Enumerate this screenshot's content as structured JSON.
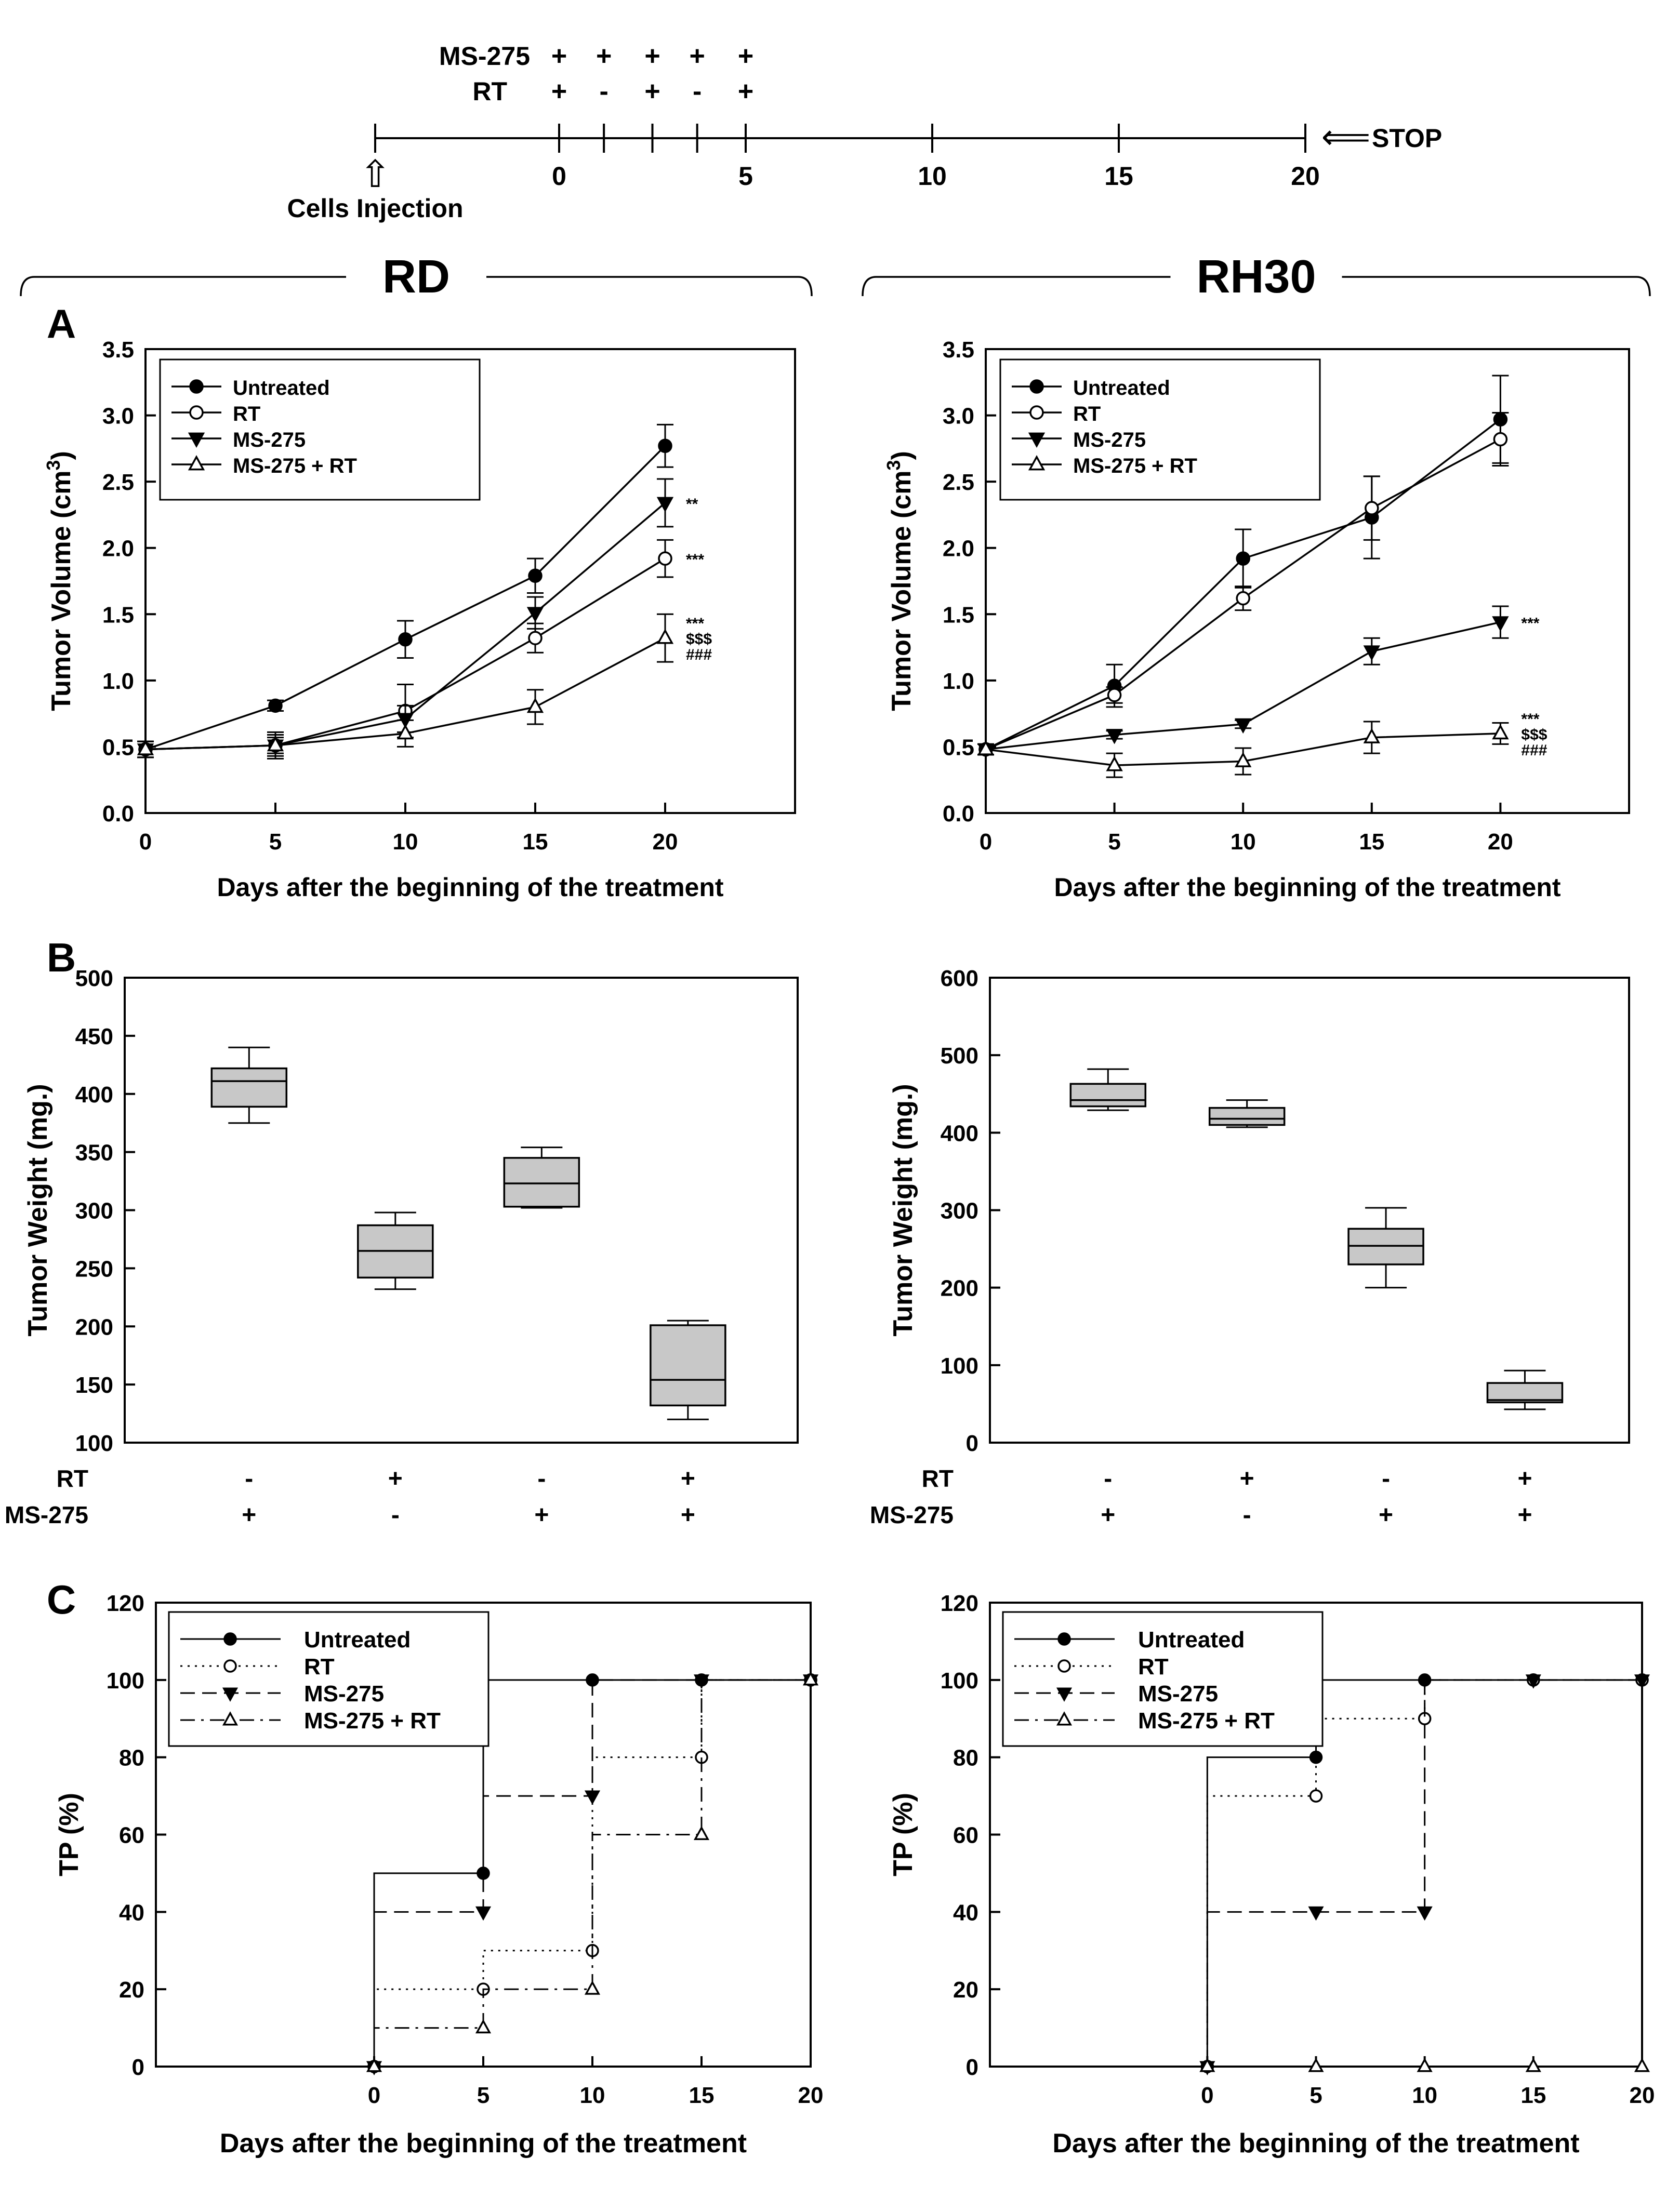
{
  "timeline": {
    "row_labels": [
      "MS-275",
      "RT"
    ],
    "ms275_marks": [
      "+",
      "+",
      "+",
      "+",
      "+"
    ],
    "rt_marks": [
      "+",
      "-",
      "+",
      "-",
      "+"
    ],
    "mark_days": [
      0,
      1.2,
      2.5,
      3.7,
      5
    ],
    "ticks": [
      0,
      5,
      10,
      15,
      20
    ],
    "start_label": "Cells Injection",
    "stop_label": "STOP",
    "stop_arrow": "⟸",
    "start_arrow": "⇧"
  },
  "groups": {
    "left": "RD",
    "right": "RH30"
  },
  "panel_letters": [
    "A",
    "B",
    "C"
  ],
  "panel_a_stat_labels": {
    "rd": [
      [
        "**"
      ],
      [
        "***"
      ],
      [
        "***",
        "$$$",
        "###"
      ]
    ],
    "rh30": [
      [
        "***"
      ],
      [
        "***",
        "$$$",
        "###"
      ]
    ]
  },
  "panel_b_treatment_rows": {
    "labels": [
      "RT",
      "MS-275"
    ],
    "rd": {
      "rt": [
        "-",
        "+",
        "-",
        "+"
      ],
      "ms275": [
        "+",
        "-",
        "+",
        "+"
      ]
    },
    "rh30": {
      "rt": [
        "-",
        "+",
        "-",
        "+"
      ],
      "ms275": [
        "+",
        "-",
        "+",
        "+"
      ]
    }
  },
  "colors": {
    "box_fill": "#c8c8c8",
    "line": "#000000",
    "axis": "#000000"
  },
  "chart_data": [
    {
      "id": "A-RD",
      "type": "line",
      "xlabel": "Days after the beginning of the treatment",
      "ylabel": "Tumor Volume (cm",
      "ylabel_sup": "3",
      "ylabel_close": ")",
      "xlim": [
        0,
        25
      ],
      "ylim": [
        0,
        3.5
      ],
      "xticks": [
        0,
        5,
        10,
        15,
        20
      ],
      "yticks": [
        "0.0",
        "0.5",
        "1.0",
        "1.5",
        "2.0",
        "2.5",
        "3.0",
        "3.5"
      ],
      "x": [
        0,
        5,
        10,
        15,
        20
      ],
      "series": [
        {
          "name": "Untreated",
          "marker": "filled-circle",
          "values": [
            0.48,
            0.81,
            1.31,
            1.79,
            2.77
          ],
          "errors": [
            0.06,
            0.04,
            0.14,
            0.13,
            0.16
          ]
        },
        {
          "name": "RT",
          "marker": "open-circle",
          "values": [
            0.48,
            0.51,
            0.77,
            1.32,
            1.92
          ],
          "errors": [
            0.06,
            0.08,
            0.2,
            0.11,
            0.14
          ]
        },
        {
          "name": "MS-275",
          "marker": "filled-triangle-down",
          "values": [
            0.48,
            0.51,
            0.71,
            1.51,
            2.34
          ],
          "errors": [
            0.06,
            0.06,
            0.1,
            0.12,
            0.18
          ]
        },
        {
          "name": "MS-275 + RT",
          "marker": "open-triangle-up",
          "values": [
            0.48,
            0.51,
            0.6,
            0.8,
            1.32
          ],
          "errors": [
            0.06,
            0.1,
            0.1,
            0.13,
            0.18
          ]
        }
      ],
      "legend": [
        "Untreated",
        "RT",
        "MS-275",
        "MS-275 + RT"
      ],
      "legend_position": "top-left"
    },
    {
      "id": "A-RH30",
      "type": "line",
      "xlabel": "Days after the beginning of the treatment",
      "ylabel": "Tumor Volume (cm",
      "ylabel_sup": "3",
      "ylabel_close": ")",
      "xlim": [
        0,
        25
      ],
      "ylim": [
        0,
        3.5
      ],
      "xticks": [
        0,
        5,
        10,
        15,
        20
      ],
      "yticks": [
        "0.0",
        "0.5",
        "1.0",
        "1.5",
        "2.0",
        "2.5",
        "3.0",
        "3.5"
      ],
      "x": [
        0,
        5,
        10,
        15,
        20
      ],
      "series": [
        {
          "name": "Untreated",
          "marker": "filled-circle",
          "values": [
            0.48,
            0.96,
            1.92,
            2.23,
            2.97
          ],
          "errors": [
            0.04,
            0.16,
            0.22,
            0.31,
            0.33
          ]
        },
        {
          "name": "RT",
          "marker": "open-circle",
          "values": [
            0.48,
            0.89,
            1.62,
            2.3,
            2.82
          ],
          "errors": [
            0.04,
            0.06,
            0.09,
            0.24,
            0.2
          ]
        },
        {
          "name": "MS-275",
          "marker": "filled-triangle-down",
          "values": [
            0.48,
            0.59,
            0.67,
            1.22,
            1.44
          ],
          "errors": [
            0.04,
            0.03,
            0.03,
            0.1,
            0.12
          ]
        },
        {
          "name": "MS-275 + RT",
          "marker": "open-triangle-up",
          "values": [
            0.48,
            0.36,
            0.39,
            0.57,
            0.6
          ],
          "errors": [
            0.04,
            0.09,
            0.1,
            0.12,
            0.08
          ]
        }
      ],
      "legend": [
        "Untreated",
        "RT",
        "MS-275",
        "MS-275 + RT"
      ],
      "legend_position": "top-left"
    },
    {
      "id": "B-RD",
      "type": "box",
      "ylabel": "Tumor Weight (mg.)",
      "ylim": [
        100,
        500
      ],
      "yticks": [
        100,
        150,
        200,
        250,
        300,
        350,
        400,
        450,
        500
      ],
      "boxes": [
        {
          "min": 375,
          "q1": 389,
          "median": 411,
          "q3": 422,
          "max": 440
        },
        {
          "min": 232,
          "q1": 242,
          "median": 265,
          "q3": 287,
          "max": 298
        },
        {
          "min": 302,
          "q1": 303,
          "median": 323,
          "q3": 345,
          "max": 354
        },
        {
          "min": 120,
          "q1": 132,
          "median": 154,
          "q3": 201,
          "max": 205
        }
      ]
    },
    {
      "id": "B-RH30",
      "type": "box",
      "ylabel": "Tumor Weight (mg.)",
      "ylim": [
        0,
        600
      ],
      "yticks": [
        0,
        100,
        200,
        300,
        400,
        500,
        600
      ],
      "boxes": [
        {
          "min": 429,
          "q1": 434,
          "median": 442,
          "q3": 463,
          "max": 482
        },
        {
          "min": 407,
          "q1": 410,
          "median": 418,
          "q3": 432,
          "max": 442
        },
        {
          "min": 200,
          "q1": 230,
          "median": 254,
          "q3": 276,
          "max": 303
        },
        {
          "min": 43,
          "q1": 52,
          "median": 55,
          "q3": 77,
          "max": 93
        }
      ]
    },
    {
      "id": "C-RD",
      "type": "line",
      "style": "step",
      "xlabel": "Days after the beginning of the treatment",
      "ylabel": "TP (%)",
      "xlim": [
        -10,
        20
      ],
      "ylim": [
        0,
        120
      ],
      "xticks": [
        0,
        5,
        10,
        15,
        20
      ],
      "yticks": [
        0,
        20,
        40,
        60,
        80,
        100,
        120
      ],
      "x": [
        0,
        5,
        10,
        15,
        20
      ],
      "series": [
        {
          "name": "Untreated",
          "marker": "filled-circle",
          "dash": "solid",
          "values": [
            50,
            100,
            100,
            100,
            100
          ],
          "points": [
            [
              0,
              0
            ],
            [
              5,
              50
            ],
            [
              10,
              100
            ],
            [
              15,
              100
            ],
            [
              20,
              100
            ]
          ]
        },
        {
          "name": "RT",
          "marker": "open-circle",
          "dash": "dotted",
          "values": [
            20,
            30,
            80,
            100,
            100
          ],
          "points": [
            [
              0,
              0
            ],
            [
              5,
              20
            ],
            [
              10,
              30
            ],
            [
              15,
              80
            ],
            [
              20,
              100
            ]
          ]
        },
        {
          "name": "MS-275",
          "marker": "filled-triangle-down",
          "dash": "dashed",
          "values": [
            40,
            70,
            100,
            100,
            100
          ],
          "points": [
            [
              0,
              0
            ],
            [
              5,
              40
            ],
            [
              10,
              70
            ],
            [
              15,
              100
            ],
            [
              20,
              100
            ]
          ]
        },
        {
          "name": "MS-275 + RT",
          "marker": "open-triangle-up",
          "dash": "dashdot",
          "values": [
            10,
            20,
            60,
            100,
            100
          ],
          "points": [
            [
              0,
              0
            ],
            [
              5,
              10
            ],
            [
              10,
              20
            ],
            [
              15,
              60
            ],
            [
              20,
              100
            ]
          ]
        }
      ],
      "legend": [
        "Untreated",
        "RT",
        "MS-275",
        "MS-275 + RT"
      ],
      "legend_position": "top-left"
    },
    {
      "id": "C-RH30",
      "type": "line",
      "style": "step",
      "xlabel": "Days after the beginning of the treatment",
      "ylabel": "TP (%)",
      "xlim": [
        -10,
        20
      ],
      "ylim": [
        0,
        120
      ],
      "xticks": [
        0,
        5,
        10,
        15,
        20
      ],
      "yticks": [
        0,
        20,
        40,
        60,
        80,
        100,
        120
      ],
      "x": [
        0,
        5,
        10,
        15,
        20
      ],
      "series": [
        {
          "name": "Untreated",
          "marker": "filled-circle",
          "dash": "solid",
          "values": [
            80,
            100,
            100,
            100,
            100
          ],
          "points": [
            [
              0,
              0
            ],
            [
              5,
              80
            ],
            [
              10,
              100
            ],
            [
              15,
              100
            ],
            [
              20,
              100
            ]
          ]
        },
        {
          "name": "RT",
          "marker": "open-circle",
          "dash": "dotted",
          "values": [
            70,
            90,
            100,
            100,
            100
          ],
          "points": [
            [
              0,
              0
            ],
            [
              5,
              70
            ],
            [
              10,
              90
            ],
            [
              15,
              100
            ],
            [
              20,
              100
            ]
          ]
        },
        {
          "name": "MS-275",
          "marker": "filled-triangle-down",
          "dash": "dashed",
          "values": [
            40,
            40,
            100,
            100,
            100
          ],
          "points": [
            [
              0,
              0
            ],
            [
              5,
              40
            ],
            [
              10,
              40
            ],
            [
              15,
              100
            ],
            [
              20,
              100
            ]
          ]
        },
        {
          "name": "MS-275 + RT",
          "marker": "open-triangle-up",
          "dash": "dashdot",
          "values": [
            0,
            0,
            0,
            0,
            0
          ],
          "points": [
            [
              0,
              0
            ],
            [
              5,
              0
            ],
            [
              10,
              0
            ],
            [
              15,
              0
            ],
            [
              20,
              0
            ]
          ]
        }
      ],
      "legend": [
        "Untreated",
        "RT",
        "MS-275",
        "MS-275 + RT"
      ],
      "legend_position": "top-left"
    }
  ]
}
